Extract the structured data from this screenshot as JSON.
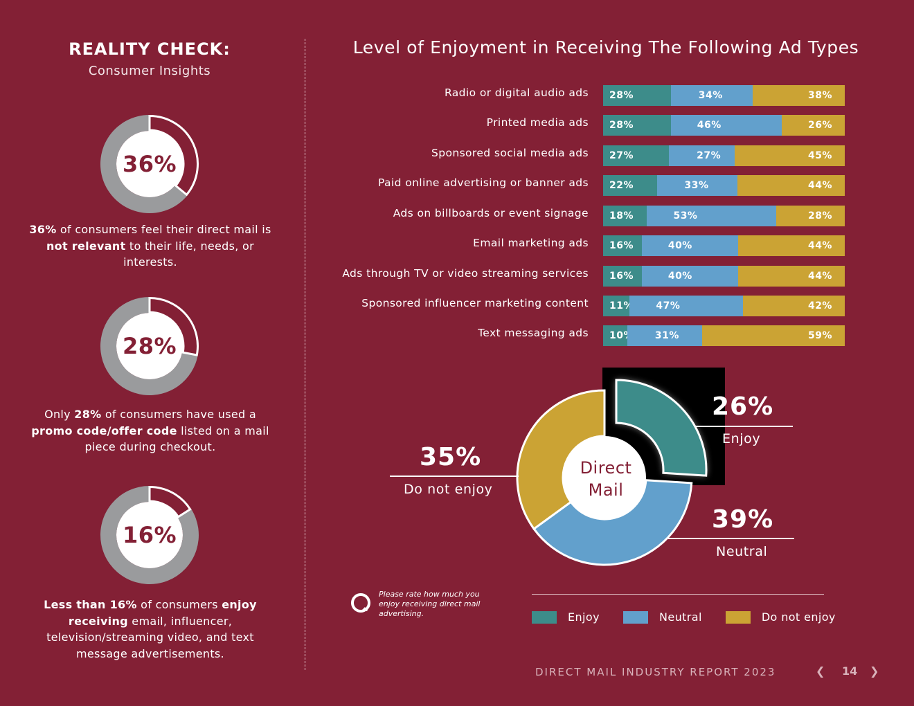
{
  "left": {
    "title": "REALITY CHECK:",
    "subtitle": "Consumer Insights",
    "insights": [
      {
        "value": 36,
        "label": "36%",
        "before": "",
        "bold1": "36%",
        "mid1": " of consumers feel their direct mail is ",
        "bold2": "not relevant",
        "mid2": " to their life, needs, or interests."
      },
      {
        "value": 28,
        "label": "28%",
        "before": "Only ",
        "bold1": "28%",
        "mid1": " of consumers have used a ",
        "bold2": "promo code/offer code",
        "mid2": " listed on a mail piece during checkout."
      },
      {
        "value": 16,
        "label": "16%",
        "before": "",
        "bold1": "Less than 16%",
        "mid1": " of consumers ",
        "bold2": "enjoy receiving",
        "mid2": " email, influencer, television/streaming video, and text message advertisements."
      }
    ]
  },
  "colors": {
    "enjoy": "#3d8c8a",
    "neutral": "#62a0cc",
    "notenjoy": "#cba334",
    "bg": "#832035",
    "donut_gray": "#9a9b9d"
  },
  "chart_data": [
    {
      "type": "bar",
      "orientation": "horizontal-stacked",
      "title": "Level of Enjoyment in Receiving The Following Ad Types",
      "categories": [
        "Radio or digital audio ads",
        "Printed media ads",
        "Sponsored social media ads",
        "Paid online advertising or banner ads",
        "Ads on billboards or event signage",
        "Email marketing ads",
        "Ads through TV or video streaming services",
        "Sponsored influencer marketing content",
        "Text messaging ads"
      ],
      "series": [
        {
          "name": "Enjoy",
          "values": [
            28,
            28,
            27,
            22,
            18,
            16,
            16,
            11,
            10
          ]
        },
        {
          "name": "Neutral",
          "values": [
            34,
            46,
            27,
            33,
            53,
            40,
            40,
            47,
            31
          ]
        },
        {
          "name": "Do not enjoy",
          "values": [
            38,
            26,
            45,
            44,
            28,
            44,
            44,
            42,
            59
          ]
        }
      ],
      "value_suffix": "%"
    },
    {
      "type": "pie",
      "title": "Direct Mail",
      "center_label": [
        "Direct",
        "Mail"
      ],
      "slices": [
        {
          "name": "Enjoy",
          "value": 26,
          "label": "26%"
        },
        {
          "name": "Neutral",
          "value": 39,
          "label": "39%"
        },
        {
          "name": "Do not enjoy",
          "value": 35,
          "label": "35%"
        }
      ],
      "legend": [
        "Enjoy",
        "Neutral",
        "Do not enjoy"
      ]
    }
  ],
  "pie_callouts": {
    "enjoy": {
      "value": "26%",
      "label": "Enjoy"
    },
    "neutral": {
      "value": "39%",
      "label": "Neutral"
    },
    "notenjoy": {
      "value": "35%",
      "label": "Do not enjoy"
    }
  },
  "center": {
    "line1": "Direct",
    "line2": "Mail"
  },
  "note": "Please rate how much you enjoy receiving direct mail advertising.",
  "legend": {
    "enjoy": "Enjoy",
    "neutral": "Neutral",
    "notenjoy": "Do not enjoy"
  },
  "footer": {
    "text": "DIRECT MAIL INDUSTRY REPORT 2023",
    "page": "14",
    "prev_icon": "chevron-left-icon",
    "next_icon": "chevron-right-icon"
  }
}
